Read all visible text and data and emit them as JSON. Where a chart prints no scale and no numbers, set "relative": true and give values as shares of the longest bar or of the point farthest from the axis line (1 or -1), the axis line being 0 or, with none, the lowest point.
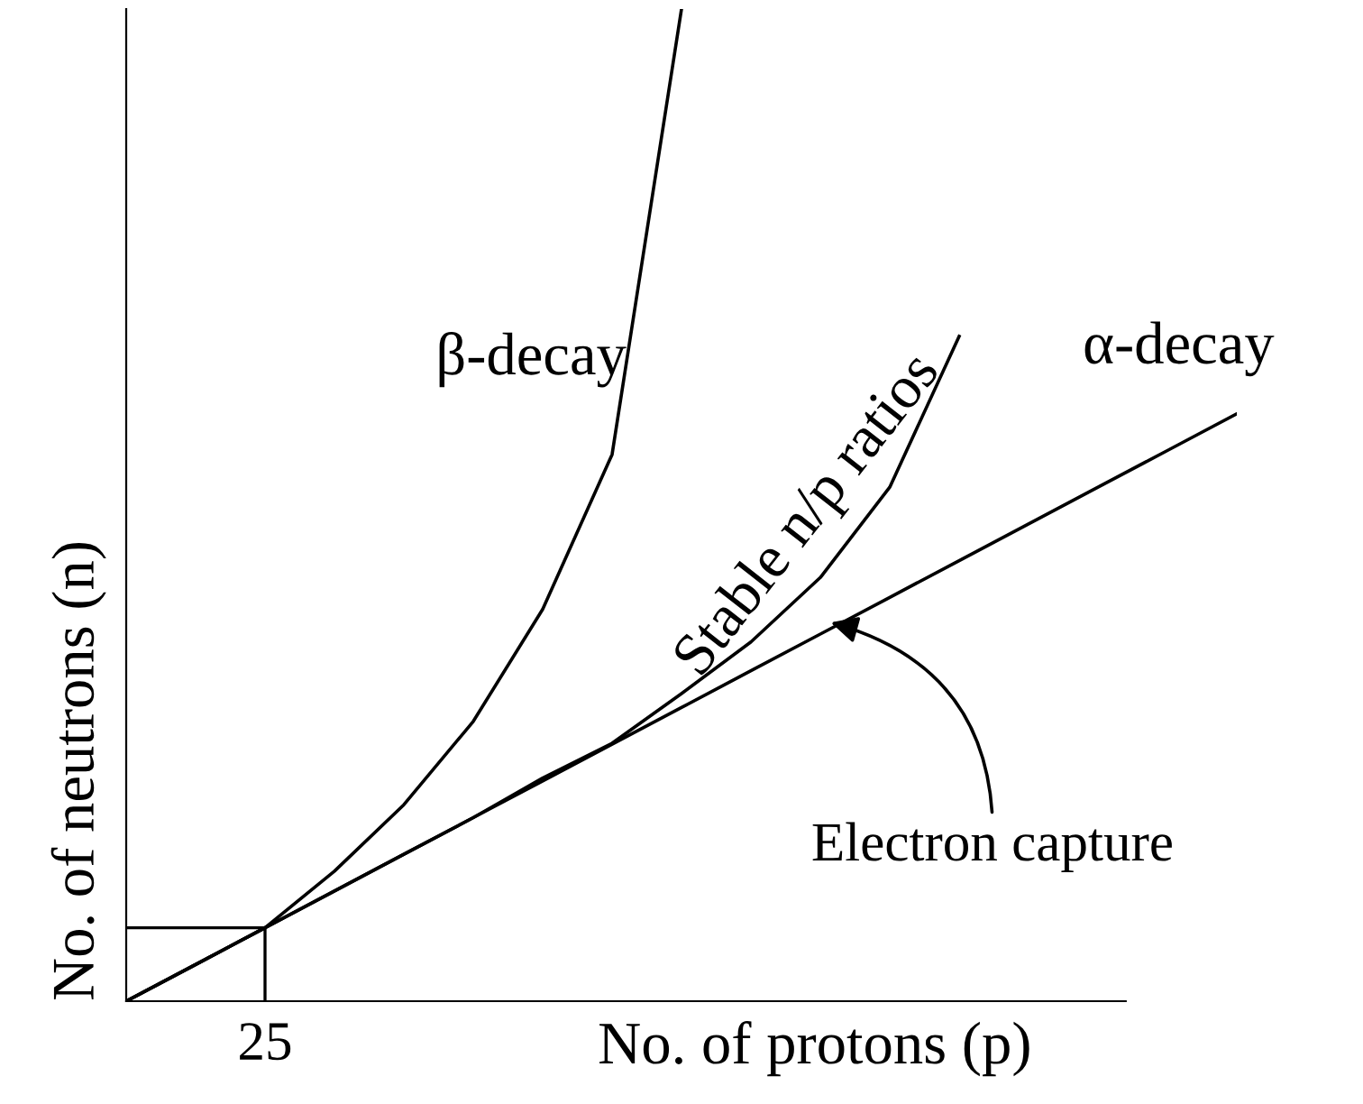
{
  "chart_data": {
    "type": "line",
    "relative": true,
    "xlabel": "No. of protons (p)",
    "ylabel": "No. of neutrons (n)",
    "categories": [
      null,
      null,
      null,
      null,
      null,
      null,
      null,
      null,
      null,
      null,
      null,
      null,
      null,
      null,
      null,
      null,
      null
    ],
    "series": [
      {
        "name": "β-decay",
        "color": "#000000",
        "values": [
          0,
          0.037,
          0.074,
          0.131,
          0.198,
          0.282,
          0.395,
          0.551,
          1.0,
          null,
          null,
          null,
          null,
          null,
          null,
          null,
          null
        ]
      },
      {
        "name": "Stable n/p ratios",
        "color": "#000000",
        "values": [
          0,
          0.037,
          0.074,
          0.111,
          0.148,
          0.185,
          0.225,
          0.26,
          0.31,
          0.362,
          0.427,
          0.518,
          0.67,
          null,
          null,
          null,
          null
        ]
      },
      {
        "name": "α-decay",
        "color": "#000000",
        "values": [
          0,
          0.037,
          0.074,
          0.111,
          0.148,
          0.185,
          0.222,
          0.259,
          0.296,
          0.333,
          0.37,
          0.407,
          0.444,
          0.481,
          0.518,
          0.555,
          0.592
        ]
      }
    ],
    "annotations": [
      "Electron capture",
      "25"
    ],
    "marker": "none",
    "line_style": "solid"
  }
}
